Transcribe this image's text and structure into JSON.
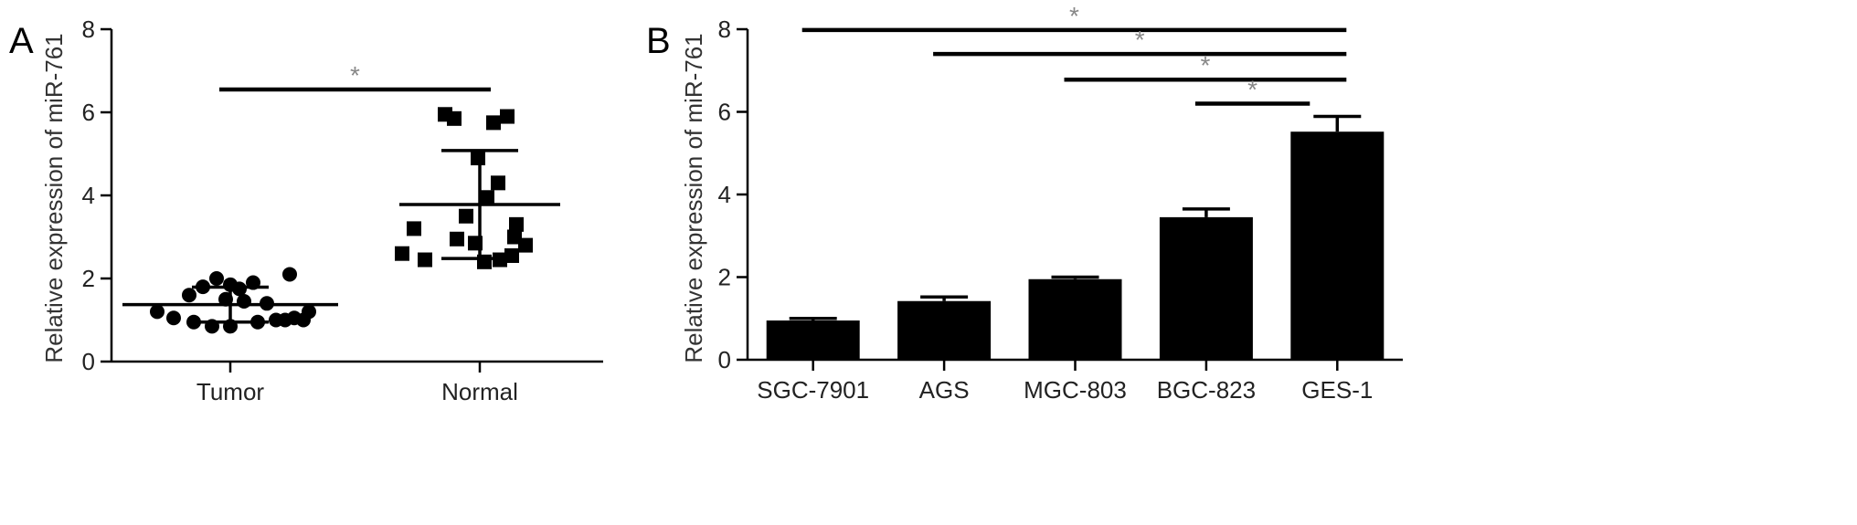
{
  "panels": {
    "a": {
      "label": "A"
    },
    "b": {
      "label": "B"
    }
  },
  "chart_data": [
    {
      "type": "scatter",
      "panel": "A",
      "ylabel": "Relative expression of miR-761",
      "xlabel": "",
      "categories": [
        "Tumor",
        "Normal"
      ],
      "ylim": [
        0,
        8
      ],
      "yticks": [
        0,
        2,
        4,
        6,
        8
      ],
      "series": [
        {
          "category": "Tumor",
          "marker": "circle",
          "values": [
            1.2,
            1.05,
            1.6,
            1.8,
            2.0,
            1.85,
            1.45,
            0.95,
            1.0,
            0.85,
            0.95,
            0.85,
            1.5,
            1.75,
            1.9,
            1.4,
            1.0,
            2.1,
            1.05,
            1.0,
            1.2
          ],
          "mean": 1.37,
          "sd_upper": 1.79,
          "sd_lower": 0.95
        },
        {
          "category": "Normal",
          "marker": "square",
          "values": [
            2.6,
            3.2,
            2.45,
            5.95,
            2.95,
            3.5,
            2.85,
            2.4,
            5.85,
            4.9,
            5.75,
            3.95,
            2.45,
            4.3,
            5.9,
            3.0,
            2.55,
            3.3,
            2.8
          ],
          "mean": 3.78,
          "sd_upper": 5.08,
          "sd_lower": 2.48
        }
      ],
      "significance": [
        {
          "from": "Tumor",
          "to": "Normal",
          "y": 6.55,
          "label": "*"
        }
      ]
    },
    {
      "type": "bar",
      "panel": "B",
      "ylabel": "Relative expression of miR-761",
      "xlabel": "",
      "categories": [
        "SGC-7901",
        "AGS",
        "MGC-803",
        "BGC-823",
        "GES-1"
      ],
      "values": [
        0.95,
        1.42,
        1.95,
        3.45,
        5.52
      ],
      "errors": [
        0.05,
        0.1,
        0.05,
        0.2,
        0.37
      ],
      "ylim": [
        0,
        8
      ],
      "yticks": [
        0,
        2,
        4,
        6,
        8
      ],
      "significance": [
        {
          "from": "SGC-7901",
          "to": "GES-1",
          "y": 7.98,
          "label": "*"
        },
        {
          "from": "AGS",
          "to": "GES-1",
          "y": 7.4,
          "label": "*"
        },
        {
          "from": "MGC-803",
          "to": "GES-1",
          "y": 6.78,
          "label": "*"
        },
        {
          "from": "BGC-823",
          "to": "GES-1",
          "y": 6.2,
          "label": "*"
        }
      ]
    }
  ]
}
